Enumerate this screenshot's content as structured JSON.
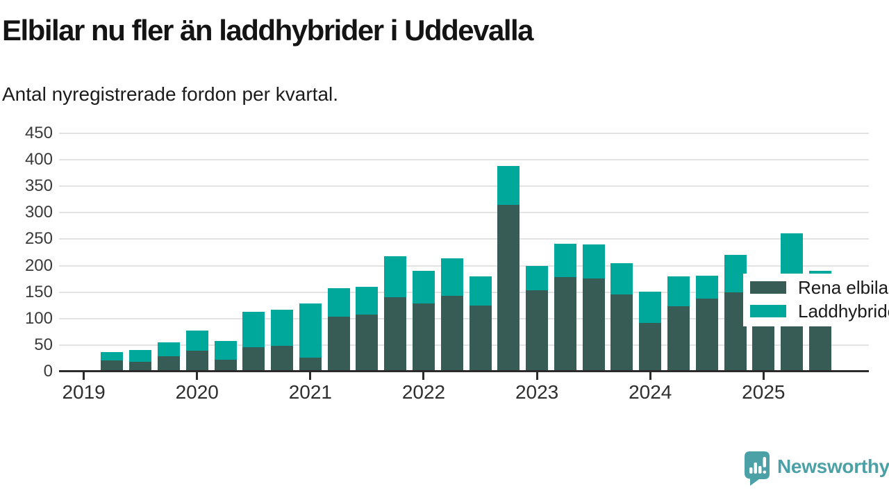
{
  "header": {
    "title": "Elbilar nu fler än laddhybrider i Uddevalla",
    "subtitle": "Antal nyregistrerade fordon per kvartal."
  },
  "legend": {
    "items": [
      {
        "label": "Rena elbilar",
        "color": "#375b55"
      },
      {
        "label": "Laddhybrider",
        "color": "#00a79b"
      }
    ]
  },
  "footer": {
    "logo_text": "Newsworthy",
    "logo_color": "#4ba1a6"
  },
  "chart_data": {
    "type": "bar",
    "stacked": true,
    "title": "Elbilar nu fler än laddhybrider i Uddevalla",
    "subtitle": "Antal nyregistrerade fordon per kvartal.",
    "xlabel": "",
    "ylabel": "",
    "grid": true,
    "legend_position": "top-right",
    "ylim": [
      0,
      450
    ],
    "y_ticks": [
      0,
      50,
      100,
      150,
      200,
      250,
      300,
      350,
      400,
      450
    ],
    "x_tick_years": [
      "2019",
      "2020",
      "2021",
      "2022",
      "2023",
      "2024",
      "2025"
    ],
    "x": [
      "2019 Q2",
      "2019 Q3",
      "2019 Q4",
      "2020 Q1",
      "2020 Q2",
      "2020 Q3",
      "2020 Q4",
      "2021 Q1",
      "2021 Q2",
      "2021 Q3",
      "2021 Q4",
      "2022 Q1",
      "2022 Q2",
      "2022 Q3",
      "2022 Q4",
      "2023 Q1",
      "2023 Q2",
      "2023 Q3",
      "2023 Q4",
      "2024 Q1",
      "2024 Q2",
      "2024 Q3",
      "2024 Q4",
      "2025 Q1",
      "2025 Q2",
      "2025 Q3"
    ],
    "series": [
      {
        "name": "Rena elbilar",
        "color": "#375b55",
        "values": [
          21,
          19,
          29,
          40,
          22,
          46,
          49,
          26,
          104,
          108,
          141,
          128,
          143,
          125,
          315,
          154,
          178,
          176,
          146,
          92,
          124,
          138,
          150,
          102,
          161,
          115
        ]
      },
      {
        "name": "Laddhybrider",
        "color": "#00a79b",
        "values": [
          16,
          22,
          26,
          38,
          36,
          67,
          68,
          102,
          53,
          52,
          77,
          62,
          71,
          55,
          74,
          45,
          63,
          64,
          59,
          59,
          56,
          43,
          70,
          73,
          100,
          75
        ]
      }
    ]
  }
}
